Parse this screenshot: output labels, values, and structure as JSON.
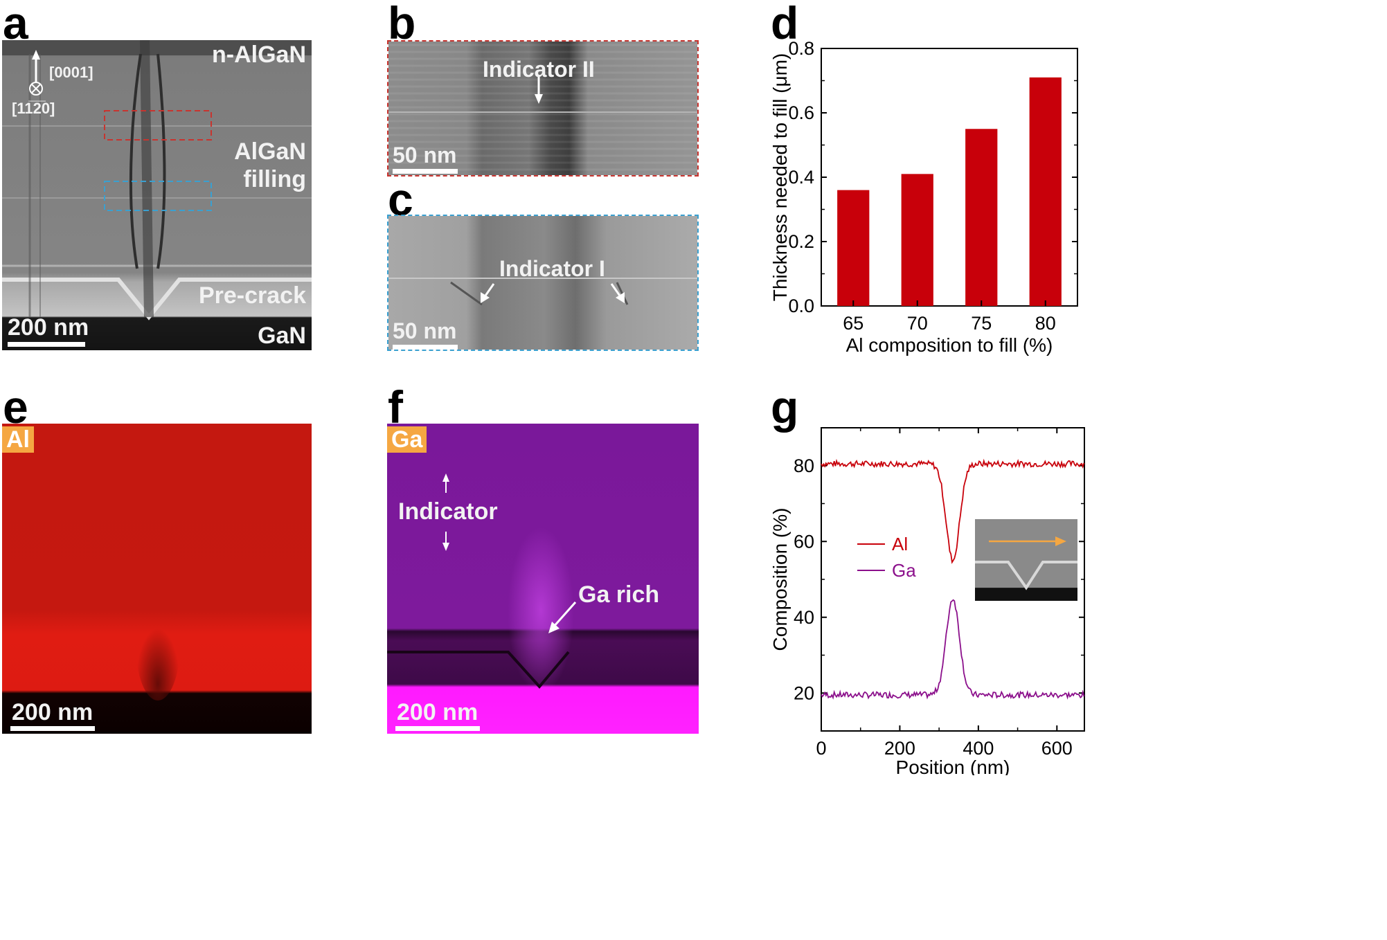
{
  "labels": {
    "a": "a",
    "b": "b",
    "c": "c",
    "d": "d",
    "e": "e",
    "f": "f",
    "g": "g"
  },
  "panel_a": {
    "layer_top": "n-AlGaN",
    "layer_mid_1": "AlGaN",
    "layer_mid_2": "filling",
    "layer_crack": "Pre-crack",
    "layer_bottom": "GaN",
    "dir_up": "[0001]",
    "dir_in": "[11̅2̅0]",
    "scale": "200 nm"
  },
  "panel_b": {
    "indicator": "Indicator II",
    "scale": "50 nm"
  },
  "panel_c": {
    "indicator": "Indicator I",
    "scale": "50 nm"
  },
  "panel_e": {
    "element": "Al",
    "scale": "200 nm"
  },
  "panel_f": {
    "element": "Ga",
    "indicator": "Indicator",
    "ga_rich": "Ga rich",
    "scale": "200 nm"
  },
  "colors": {
    "bar": "#c8000a",
    "al_line": "#c8000a",
    "ga_line": "#8b0f8b",
    "arrow_inset": "#f5a742"
  },
  "chart_data": [
    {
      "id": "d",
      "type": "bar",
      "categories": [
        "65",
        "70",
        "75",
        "80"
      ],
      "values": [
        0.36,
        0.41,
        0.55,
        0.71
      ],
      "xlabel": "Al composition to fill (%)",
      "ylabel": "Thickness needed to fill (μm)",
      "ylim": [
        0,
        0.8
      ],
      "yticks": [
        "0.0",
        "0.2",
        "0.4",
        "0.6",
        "0.8"
      ]
    },
    {
      "id": "g",
      "type": "line",
      "xlabel": "Position (nm)",
      "ylabel": "Composition (%)",
      "xlim": [
        0,
        670
      ],
      "ylim": [
        10,
        90
      ],
      "xticks": [
        "0",
        "200",
        "400",
        "600"
      ],
      "yticks": [
        "20",
        "40",
        "60",
        "80"
      ],
      "series": [
        {
          "name": "Al",
          "baseline": 80.5,
          "dip_center": 335,
          "dip_min": 55
        },
        {
          "name": "Ga",
          "baseline": 19.5,
          "peak_center": 335,
          "peak_max": 45
        }
      ],
      "legend": [
        "Al",
        "Ga"
      ]
    }
  ]
}
